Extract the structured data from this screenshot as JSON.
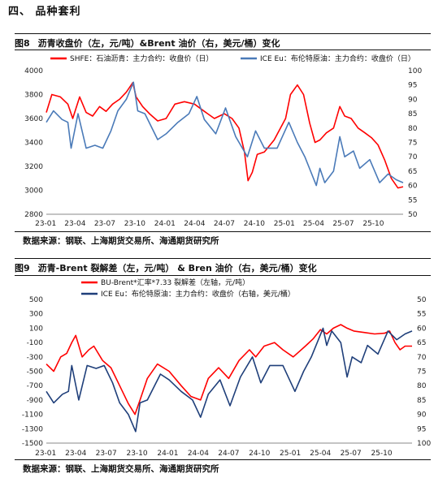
{
  "section_title": "四、  品种套利",
  "colors": {
    "red": "#ff0000",
    "blue": "#4a7ab8",
    "navy": "#1f3f7a"
  },
  "figures": [
    {
      "number": "图8",
      "title": "沥青收盘价（左，元/吨）&Brent 油价（右，美元/桶）变化",
      "source": "数据来源：钢联、上海期货交易所、海通期货研究所"
    },
    {
      "number": "图9",
      "title": "沥青-Brent 裂解差（左，元/吨） & Bren 油价（右，美元/桶）变化",
      "source": "数据来源：钢联、上海期货交易所、海通期货研究所"
    }
  ],
  "chart_data": [
    {
      "type": "line",
      "x_type": "date",
      "x_range": [
        "2023-01-03",
        "2025-12-31"
      ],
      "x_ticks": [
        "23-01",
        "23-04",
        "23-07",
        "23-10",
        "24-01",
        "24-04",
        "24-07",
        "24-10",
        "25-01",
        "25-04",
        "25-07",
        "25-10"
      ],
      "y_left": {
        "min": 2800,
        "max": 4000,
        "ticks": [
          2800,
          3000,
          3200,
          3400,
          3600,
          3800,
          4000
        ]
      },
      "y_right": {
        "min": 50,
        "max": 100,
        "ticks": [
          50,
          55,
          60,
          65,
          70,
          75,
          80,
          85,
          90,
          95,
          100
        ],
        "reversed": false
      },
      "grid": false,
      "legend_position": "top",
      "series": [
        {
          "name": "SHFE：石油沥青：主力合约：收盘价（日）",
          "axis": "left",
          "color": "#ff0000",
          "points": [
            [
              "2023-01-03",
              3650
            ],
            [
              "2023-01-20",
              3800
            ],
            [
              "2023-02-15",
              3780
            ],
            [
              "2023-03-10",
              3720
            ],
            [
              "2023-03-25",
              3600
            ],
            [
              "2023-04-15",
              3780
            ],
            [
              "2023-05-05",
              3650
            ],
            [
              "2023-05-25",
              3620
            ],
            [
              "2023-06-15",
              3700
            ],
            [
              "2023-07-05",
              3660
            ],
            [
              "2023-07-25",
              3720
            ],
            [
              "2023-08-15",
              3760
            ],
            [
              "2023-09-05",
              3820
            ],
            [
              "2023-09-25",
              3900
            ],
            [
              "2023-10-05",
              3780
            ],
            [
              "2023-10-25",
              3700
            ],
            [
              "2023-11-15",
              3640
            ],
            [
              "2023-12-10",
              3580
            ],
            [
              "2024-01-05",
              3600
            ],
            [
              "2024-02-01",
              3720
            ],
            [
              "2024-03-01",
              3740
            ],
            [
              "2024-04-01",
              3720
            ],
            [
              "2024-05-01",
              3660
            ],
            [
              "2024-06-01",
              3600
            ],
            [
              "2024-07-01",
              3640
            ],
            [
              "2024-07-25",
              3600
            ],
            [
              "2024-08-15",
              3520
            ],
            [
              "2024-09-01",
              3320
            ],
            [
              "2024-09-12",
              3080
            ],
            [
              "2024-09-25",
              3150
            ],
            [
              "2024-10-10",
              3300
            ],
            [
              "2024-11-01",
              3320
            ],
            [
              "2024-12-01",
              3420
            ],
            [
              "2025-01-05",
              3600
            ],
            [
              "2025-01-20",
              3800
            ],
            [
              "2025-02-10",
              3880
            ],
            [
              "2025-03-01",
              3800
            ],
            [
              "2025-03-20",
              3560
            ],
            [
              "2025-04-05",
              3400
            ],
            [
              "2025-04-20",
              3420
            ],
            [
              "2025-05-10",
              3480
            ],
            [
              "2025-06-01",
              3520
            ],
            [
              "2025-06-20",
              3700
            ],
            [
              "2025-07-05",
              3620
            ],
            [
              "2025-07-25",
              3600
            ],
            [
              "2025-08-15",
              3520
            ],
            [
              "2025-09-05",
              3480
            ],
            [
              "2025-09-25",
              3440
            ],
            [
              "2025-10-15",
              3380
            ],
            [
              "2025-11-05",
              3250
            ],
            [
              "2025-11-25",
              3100
            ],
            [
              "2025-12-15",
              3020
            ],
            [
              "2025-12-31",
              3030
            ]
          ]
        },
        {
          "name": "ICE Eu：布伦特原油：主力合约：收盘价（日）",
          "axis": "right",
          "color": "#4a7ab8",
          "points": [
            [
              "2023-01-03",
              82
            ],
            [
              "2023-01-25",
              86
            ],
            [
              "2023-02-20",
              83
            ],
            [
              "2023-03-10",
              82
            ],
            [
              "2023-03-20",
              73
            ],
            [
              "2023-04-10",
              85
            ],
            [
              "2023-05-05",
              73
            ],
            [
              "2023-06-01",
              74
            ],
            [
              "2023-06-25",
              73
            ],
            [
              "2023-07-20",
              79
            ],
            [
              "2023-08-10",
              86
            ],
            [
              "2023-09-05",
              90
            ],
            [
              "2023-09-27",
              96
            ],
            [
              "2023-10-10",
              86
            ],
            [
              "2023-11-01",
              85
            ],
            [
              "2023-12-10",
              76
            ],
            [
              "2024-01-05",
              78
            ],
            [
              "2024-02-10",
              82
            ],
            [
              "2024-03-15",
              85
            ],
            [
              "2024-04-08",
              91
            ],
            [
              "2024-05-01",
              83
            ],
            [
              "2024-06-05",
              78
            ],
            [
              "2024-07-05",
              87
            ],
            [
              "2024-08-05",
              77
            ],
            [
              "2024-09-10",
              70
            ],
            [
              "2024-10-05",
              79
            ],
            [
              "2024-11-01",
              73
            ],
            [
              "2024-12-10",
              73
            ],
            [
              "2025-01-15",
              82
            ],
            [
              "2025-02-10",
              75
            ],
            [
              "2025-03-05",
              70
            ],
            [
              "2025-04-09",
              60
            ],
            [
              "2025-04-20",
              66
            ],
            [
              "2025-05-05",
              61
            ],
            [
              "2025-06-01",
              65
            ],
            [
              "2025-06-20",
              77
            ],
            [
              "2025-07-05",
              70
            ],
            [
              "2025-08-01",
              72
            ],
            [
              "2025-08-20",
              66
            ],
            [
              "2025-09-20",
              69
            ],
            [
              "2025-10-20",
              61
            ],
            [
              "2025-11-15",
              64
            ],
            [
              "2025-12-10",
              62
            ],
            [
              "2025-12-31",
              61
            ]
          ]
        }
      ]
    },
    {
      "type": "line",
      "x_type": "date",
      "x_range": [
        "2023-01-03",
        "2025-12-31"
      ],
      "x_ticks": [
        "23-01",
        "23-04",
        "23-07",
        "23-10",
        "24-01",
        "24-04",
        "24-07",
        "24-10",
        "25-01",
        "25-04",
        "25-07",
        "25-10"
      ],
      "y_left": {
        "min": -1500,
        "max": 500,
        "ticks": [
          -1500,
          -1300,
          -1100,
          -900,
          -700,
          -500,
          -300,
          -100,
          100,
          300,
          500
        ]
      },
      "y_right": {
        "min": 50,
        "max": 100,
        "ticks": [
          50,
          55,
          60,
          65,
          70,
          75,
          80,
          85,
          90,
          95,
          100
        ],
        "reversed": true
      },
      "grid": false,
      "legend_position": "top",
      "series": [
        {
          "name": "BU-Brent*汇率*7.33 裂解差（左轴，元/吨）",
          "axis": "left",
          "color": "#ff0000",
          "points": [
            [
              "2023-01-03",
              -400
            ],
            [
              "2023-01-25",
              -500
            ],
            [
              "2023-02-15",
              -300
            ],
            [
              "2023-03-05",
              -250
            ],
            [
              "2023-03-20",
              -100
            ],
            [
              "2023-04-01",
              0
            ],
            [
              "2023-04-20",
              -300
            ],
            [
              "2023-05-10",
              -200
            ],
            [
              "2023-05-25",
              -150
            ],
            [
              "2023-06-20",
              -350
            ],
            [
              "2023-07-15",
              -450
            ],
            [
              "2023-08-10",
              -700
            ],
            [
              "2023-09-05",
              -950
            ],
            [
              "2023-09-25",
              -1100
            ],
            [
              "2023-10-10",
              -900
            ],
            [
              "2023-11-01",
              -600
            ],
            [
              "2023-12-01",
              -400
            ],
            [
              "2024-01-05",
              -500
            ],
            [
              "2024-02-10",
              -700
            ],
            [
              "2024-03-10",
              -850
            ],
            [
              "2024-04-08",
              -900
            ],
            [
              "2024-05-01",
              -600
            ],
            [
              "2024-06-01",
              -450
            ],
            [
              "2024-07-01",
              -600
            ],
            [
              "2024-08-01",
              -350
            ],
            [
              "2024-09-01",
              -200
            ],
            [
              "2024-09-20",
              -300
            ],
            [
              "2024-10-15",
              -150
            ],
            [
              "2024-11-15",
              -100
            ],
            [
              "2024-12-10",
              -200
            ],
            [
              "2025-01-10",
              -300
            ],
            [
              "2025-02-15",
              -150
            ],
            [
              "2025-03-10",
              -50
            ],
            [
              "2025-04-01",
              80
            ],
            [
              "2025-04-20",
              20
            ],
            [
              "2025-05-10",
              100
            ],
            [
              "2025-06-01",
              150
            ],
            [
              "2025-06-20",
              100
            ],
            [
              "2025-07-10",
              60
            ],
            [
              "2025-08-10",
              40
            ],
            [
              "2025-09-10",
              20
            ],
            [
              "2025-10-10",
              30
            ],
            [
              "2025-10-25",
              60
            ],
            [
              "2025-11-10",
              -100
            ],
            [
              "2025-11-25",
              -200
            ],
            [
              "2025-12-10",
              -150
            ],
            [
              "2025-12-31",
              -150
            ]
          ]
        },
        {
          "name": "ICE Eu：布伦特原油：主力合约：收盘价（右轴，美元/桶）",
          "axis": "right",
          "color": "#1f3f7a",
          "points": [
            [
              "2023-01-03",
              82
            ],
            [
              "2023-01-25",
              86
            ],
            [
              "2023-02-20",
              83
            ],
            [
              "2023-03-10",
              82
            ],
            [
              "2023-03-20",
              73
            ],
            [
              "2023-04-10",
              85
            ],
            [
              "2023-05-05",
              73
            ],
            [
              "2023-06-01",
              74
            ],
            [
              "2023-06-25",
              73
            ],
            [
              "2023-07-20",
              79
            ],
            [
              "2023-08-10",
              86
            ],
            [
              "2023-09-05",
              90
            ],
            [
              "2023-09-27",
              96
            ],
            [
              "2023-10-10",
              86
            ],
            [
              "2023-11-01",
              85
            ],
            [
              "2023-12-10",
              76
            ],
            [
              "2024-01-05",
              78
            ],
            [
              "2024-02-10",
              82
            ],
            [
              "2024-03-15",
              85
            ],
            [
              "2024-04-08",
              91
            ],
            [
              "2024-05-01",
              83
            ],
            [
              "2024-06-05",
              78
            ],
            [
              "2024-07-05",
              87
            ],
            [
              "2024-08-05",
              77
            ],
            [
              "2024-09-10",
              70
            ],
            [
              "2024-10-05",
              79
            ],
            [
              "2024-11-01",
              73
            ],
            [
              "2024-12-10",
              73
            ],
            [
              "2025-01-15",
              82
            ],
            [
              "2025-02-10",
              75
            ],
            [
              "2025-03-05",
              70
            ],
            [
              "2025-04-09",
              60
            ],
            [
              "2025-04-20",
              66
            ],
            [
              "2025-05-05",
              61
            ],
            [
              "2025-06-01",
              65
            ],
            [
              "2025-06-20",
              77
            ],
            [
              "2025-07-05",
              70
            ],
            [
              "2025-08-01",
              72
            ],
            [
              "2025-08-20",
              66
            ],
            [
              "2025-09-20",
              69
            ],
            [
              "2025-10-20",
              61
            ],
            [
              "2025-11-15",
              64
            ],
            [
              "2025-12-10",
              62
            ],
            [
              "2025-12-31",
              61
            ]
          ]
        }
      ]
    }
  ]
}
